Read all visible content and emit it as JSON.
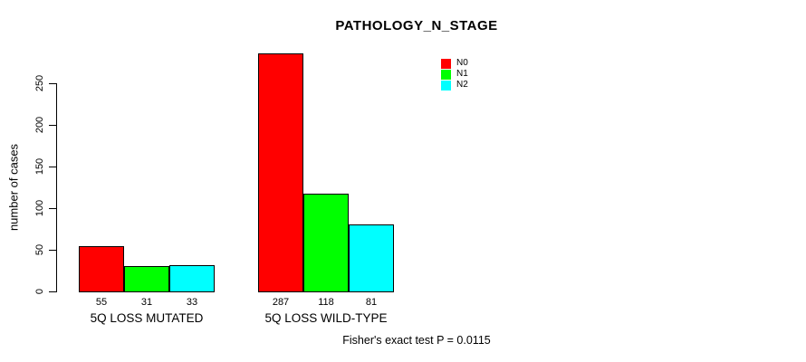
{
  "chart_data": {
    "type": "bar",
    "title": "PATHOLOGY_N_STAGE",
    "ylabel": "number of cases",
    "xlabel": "",
    "yticks": [
      0,
      50,
      100,
      150,
      200,
      250
    ],
    "ylim": [
      0,
      287
    ],
    "grid": false,
    "categories": [
      "5Q LOSS MUTATED",
      "5Q LOSS WILD-TYPE"
    ],
    "series": [
      {
        "name": "N0",
        "color": "#ff0000",
        "values": [
          55,
          287
        ]
      },
      {
        "name": "N1",
        "color": "#00ff00",
        "values": [
          31,
          118
        ]
      },
      {
        "name": "N2",
        "color": "#00ffff",
        "values": [
          33,
          81
        ]
      }
    ],
    "legend": {
      "position": "top-right",
      "entries": [
        "N0",
        "N1",
        "N2"
      ]
    },
    "footnote": "Fisher's exact test P = 0.0115"
  },
  "colors": {
    "background": "#ffffff",
    "axis": "#000000",
    "text": "#000000"
  }
}
